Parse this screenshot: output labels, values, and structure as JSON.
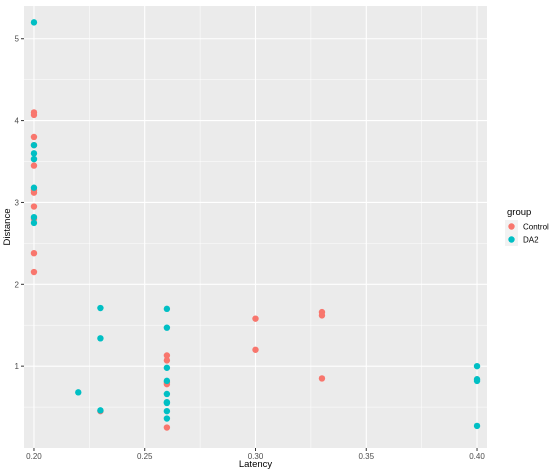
{
  "chart_data": {
    "type": "scatter",
    "xlabel": "Latency",
    "ylabel": "Distance",
    "xlim": [
      0.1955,
      0.4045
    ],
    "ylim": [
      0.0,
      5.4
    ],
    "x_ticks": [
      0.2,
      0.25,
      0.3,
      0.35,
      0.4
    ],
    "x_tick_labels": [
      "0.20",
      "0.25",
      "0.30",
      "0.35",
      "0.40"
    ],
    "y_ticks": [
      1,
      2,
      3,
      4,
      5
    ],
    "y_tick_labels": [
      "1",
      "2",
      "3",
      "4",
      "5"
    ],
    "grid": true,
    "legend": {
      "title": "group",
      "position": "right"
    },
    "series": [
      {
        "name": "Control",
        "color": "#F8766D",
        "points": [
          [
            0.2,
            4.1
          ],
          [
            0.2,
            4.07
          ],
          [
            0.2,
            3.8
          ],
          [
            0.2,
            3.7
          ],
          [
            0.2,
            3.45
          ],
          [
            0.2,
            3.15
          ],
          [
            0.2,
            3.12
          ],
          [
            0.2,
            2.95
          ],
          [
            0.2,
            2.8
          ],
          [
            0.2,
            2.38
          ],
          [
            0.2,
            2.15
          ],
          [
            0.23,
            0.45
          ],
          [
            0.26,
            1.13
          ],
          [
            0.26,
            1.07
          ],
          [
            0.26,
            0.8
          ],
          [
            0.26,
            0.78
          ],
          [
            0.26,
            0.25
          ],
          [
            0.3,
            1.58
          ],
          [
            0.3,
            1.2
          ],
          [
            0.33,
            1.66
          ],
          [
            0.33,
            1.62
          ],
          [
            0.33,
            0.85
          ]
        ]
      },
      {
        "name": "DA2",
        "color": "#00BFC4",
        "points": [
          [
            0.2,
            5.2
          ],
          [
            0.2,
            3.7
          ],
          [
            0.2,
            3.6
          ],
          [
            0.2,
            3.53
          ],
          [
            0.2,
            3.18
          ],
          [
            0.2,
            2.82
          ],
          [
            0.2,
            2.75
          ],
          [
            0.22,
            0.68
          ],
          [
            0.23,
            1.71
          ],
          [
            0.23,
            1.34
          ],
          [
            0.23,
            0.46
          ],
          [
            0.26,
            1.7
          ],
          [
            0.26,
            1.47
          ],
          [
            0.26,
            0.98
          ],
          [
            0.26,
            0.82
          ],
          [
            0.26,
            0.66
          ],
          [
            0.26,
            0.56
          ],
          [
            0.26,
            0.55
          ],
          [
            0.26,
            0.45
          ],
          [
            0.26,
            0.36
          ],
          [
            0.4,
            1.0
          ],
          [
            0.4,
            0.84
          ],
          [
            0.4,
            0.82
          ],
          [
            0.4,
            0.27
          ]
        ]
      }
    ]
  }
}
